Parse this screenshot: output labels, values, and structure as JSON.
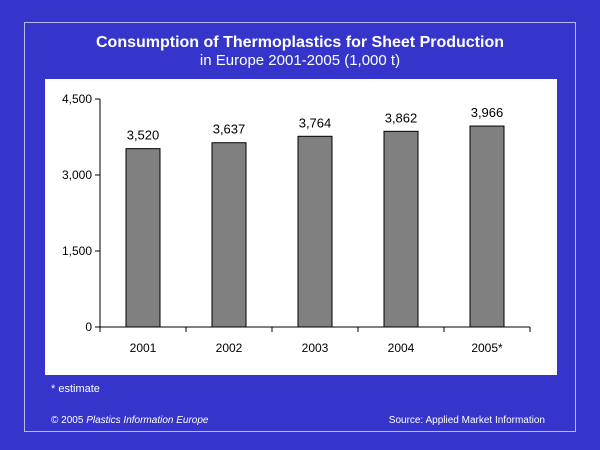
{
  "colors": {
    "background": "#3535cc",
    "plot_background": "#ffffff",
    "bar_fill": "#808080",
    "bar_stroke": "#000000",
    "text": "#ffffff"
  },
  "chart_data": {
    "type": "bar",
    "title": "Consumption of Thermoplastics for Sheet Production",
    "subtitle": "in Europe 2001-2005 (1,000 t)",
    "categories": [
      "2001",
      "2002",
      "2003",
      "2004",
      "2005*"
    ],
    "values": [
      3520,
      3637,
      3764,
      3862,
      3966
    ],
    "value_labels": [
      "3,520",
      "3,637",
      "3,764",
      "3,862",
      "3,966"
    ],
    "ylim": [
      0,
      4500
    ],
    "yticks": [
      0,
      1500,
      3000,
      4500
    ],
    "ytick_labels": [
      "0",
      "1,500",
      "3,000",
      "4,500"
    ],
    "grid": false,
    "legend": "none"
  },
  "footer": {
    "note": "* estimate",
    "copyright_prefix": "© 2005",
    "copyright_org": "Plastics Information Europe",
    "source": "Source: Applied Market Information"
  }
}
